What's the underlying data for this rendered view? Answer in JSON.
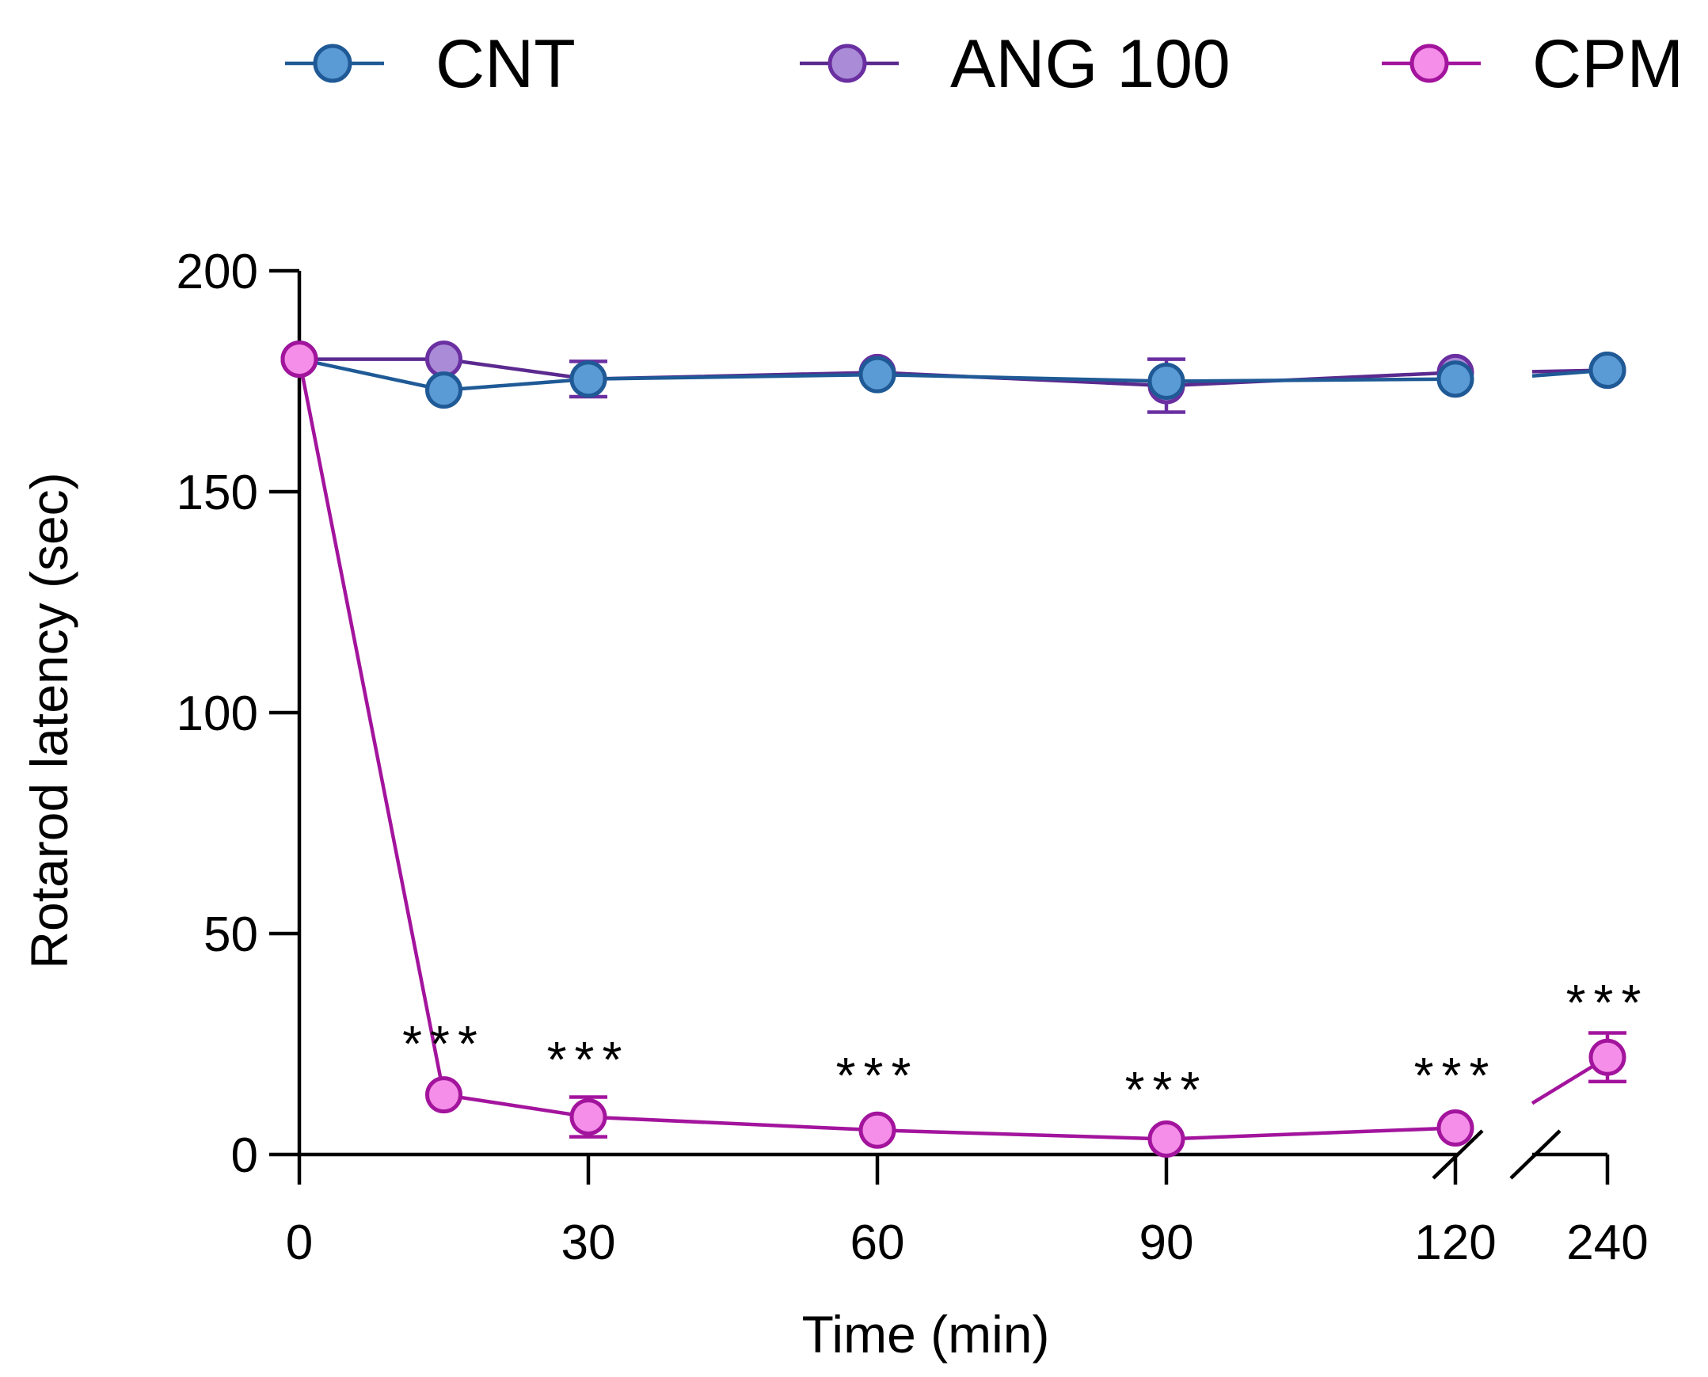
{
  "chart_data": {
    "type": "line",
    "title": "",
    "xlabel": "Time (min)",
    "ylabel": "Rotarod latency (sec)",
    "ylim": [
      0,
      200
    ],
    "yticks": [
      0,
      50,
      100,
      150,
      200
    ],
    "xticks": [
      0,
      30,
      60,
      90,
      120,
      240
    ],
    "x_break": [
      120,
      240
    ],
    "legend_position": "top",
    "series": [
      {
        "name": "ANG 100",
        "line_color": "#5b2a8f",
        "marker_fill": "#a98bd8",
        "marker_stroke": "#6a2fa0",
        "points": [
          {
            "x": 0,
            "y": 180,
            "err": 0
          },
          {
            "x": 15,
            "y": 180,
            "err": 0
          },
          {
            "x": 30,
            "y": 175.5,
            "err": 4
          },
          {
            "x": 60,
            "y": 177,
            "err": 0
          },
          {
            "x": 90,
            "y": 174,
            "err": 6
          },
          {
            "x": 120,
            "y": 177,
            "err": 0
          },
          {
            "x": 240,
            "y": 177.5,
            "err": 0
          }
        ]
      },
      {
        "name": "CNT",
        "line_color": "#1f5a96",
        "marker_fill": "#5b9bd5",
        "marker_stroke": "#1f5a96",
        "points": [
          {
            "x": 0,
            "y": 180,
            "err": 0
          },
          {
            "x": 15,
            "y": 173,
            "err": 0
          },
          {
            "x": 30,
            "y": 175.5,
            "err": 0
          },
          {
            "x": 60,
            "y": 176.5,
            "err": 0
          },
          {
            "x": 90,
            "y": 175,
            "err": 0
          },
          {
            "x": 120,
            "y": 175.5,
            "err": 0
          },
          {
            "x": 240,
            "y": 177.5,
            "err": 0
          }
        ]
      },
      {
        "name": "CPM",
        "line_color": "#a3149d",
        "marker_fill": "#f58ee8",
        "marker_stroke": "#a3149d",
        "points": [
          {
            "x": 0,
            "y": 180,
            "err": 0
          },
          {
            "x": 15,
            "y": 13.5,
            "err": 0
          },
          {
            "x": 30,
            "y": 8.5,
            "err": 4.5
          },
          {
            "x": 60,
            "y": 5.5,
            "err": 0
          },
          {
            "x": 90,
            "y": 3.5,
            "err": 0
          },
          {
            "x": 120,
            "y": 6,
            "err": 0
          },
          {
            "x": 240,
            "y": 22,
            "err": 5.5
          }
        ]
      }
    ],
    "annotations": [
      {
        "x": 15,
        "text": "***"
      },
      {
        "x": 30,
        "text": "***"
      },
      {
        "x": 60,
        "text": "***"
      },
      {
        "x": 90,
        "text": "***"
      },
      {
        "x": 120,
        "text": "***"
      },
      {
        "x": 240,
        "text": "***"
      }
    ]
  },
  "legend": [
    {
      "label": "CNT",
      "line_color": "#1f5a96",
      "marker_fill": "#5b9bd5",
      "marker_stroke": "#1f5a96"
    },
    {
      "label": "ANG 100",
      "line_color": "#5b2a8f",
      "marker_fill": "#a98bd8",
      "marker_stroke": "#6a2fa0"
    },
    {
      "label": "CPM",
      "line_color": "#a3149d",
      "marker_fill": "#f58ee8",
      "marker_stroke": "#a3149d"
    }
  ]
}
